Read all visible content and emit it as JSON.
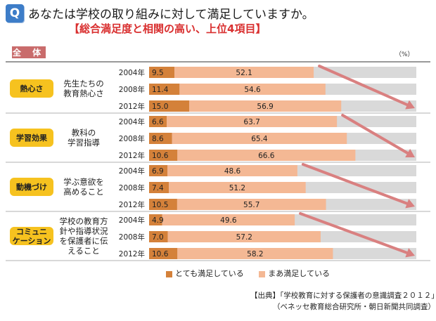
{
  "header": {
    "badge": "Q",
    "question": "あなたは学校の取り組みに対して満足していますか。",
    "subtitle": "【総合満足度と相関の高い、上位4項目】"
  },
  "total_label": "全 体",
  "unit": "（%）",
  "legend": {
    "very": "とても満足している",
    "somewhat": "まあ満足している"
  },
  "source": {
    "line1": "【出典】「学校教育に対する保護者の意識調査２０１２」",
    "line2": "（ベネッセ教育総合研究所・朝日新聞共同調査）"
  },
  "colors": {
    "very": "#d4813a",
    "somewhat": "#f4b894",
    "badge": "#f6c21f",
    "arrow": "#d98080",
    "track": "#d9d9d9"
  },
  "chart_data": {
    "type": "bar",
    "orientation": "horizontal",
    "stacked": true,
    "title": "あなたは学校の取り組みに対して満足していますか。",
    "subtitle": "【総合満足度と相関の高い、上位4項目】",
    "unit": "%",
    "xlim": [
      0,
      100
    ],
    "series_names": [
      "とても満足している",
      "まあ満足している"
    ],
    "groups": [
      {
        "category": "熱心さ",
        "item": [
          "先生たちの",
          "教育熱心さ"
        ],
        "rows": [
          {
            "year": "2004年",
            "very": 9.5,
            "somewhat": 52.1
          },
          {
            "year": "2008年",
            "very": 11.4,
            "somewhat": 54.6
          },
          {
            "year": "2012年",
            "very": 15.0,
            "somewhat": 56.9
          }
        ]
      },
      {
        "category": "学習効果",
        "item": [
          "教科の",
          "学習指導"
        ],
        "rows": [
          {
            "year": "2004年",
            "very": 6.6,
            "somewhat": 63.7
          },
          {
            "year": "2008年",
            "very": 8.6,
            "somewhat": 65.4
          },
          {
            "year": "2012年",
            "very": 10.6,
            "somewhat": 66.6
          }
        ]
      },
      {
        "category": "動機づけ",
        "item": [
          "学ぶ意欲を",
          "高めること"
        ],
        "rows": [
          {
            "year": "2004年",
            "very": 6.9,
            "somewhat": 48.6
          },
          {
            "year": "2008年",
            "very": 7.4,
            "somewhat": 51.2
          },
          {
            "year": "2012年",
            "very": 10.5,
            "somewhat": 55.7
          }
        ]
      },
      {
        "category": "コミュニ\nケーション",
        "item": [
          "学校の教育方",
          "針や指導状況",
          "を保護者に伝",
          "えること"
        ],
        "rows": [
          {
            "year": "2004年",
            "very": 4.9,
            "somewhat": 49.6
          },
          {
            "year": "2008年",
            "very": 7.0,
            "somewhat": 57.2
          },
          {
            "year": "2012年",
            "very": 10.6,
            "somewhat": 58.2
          }
        ]
      }
    ]
  }
}
